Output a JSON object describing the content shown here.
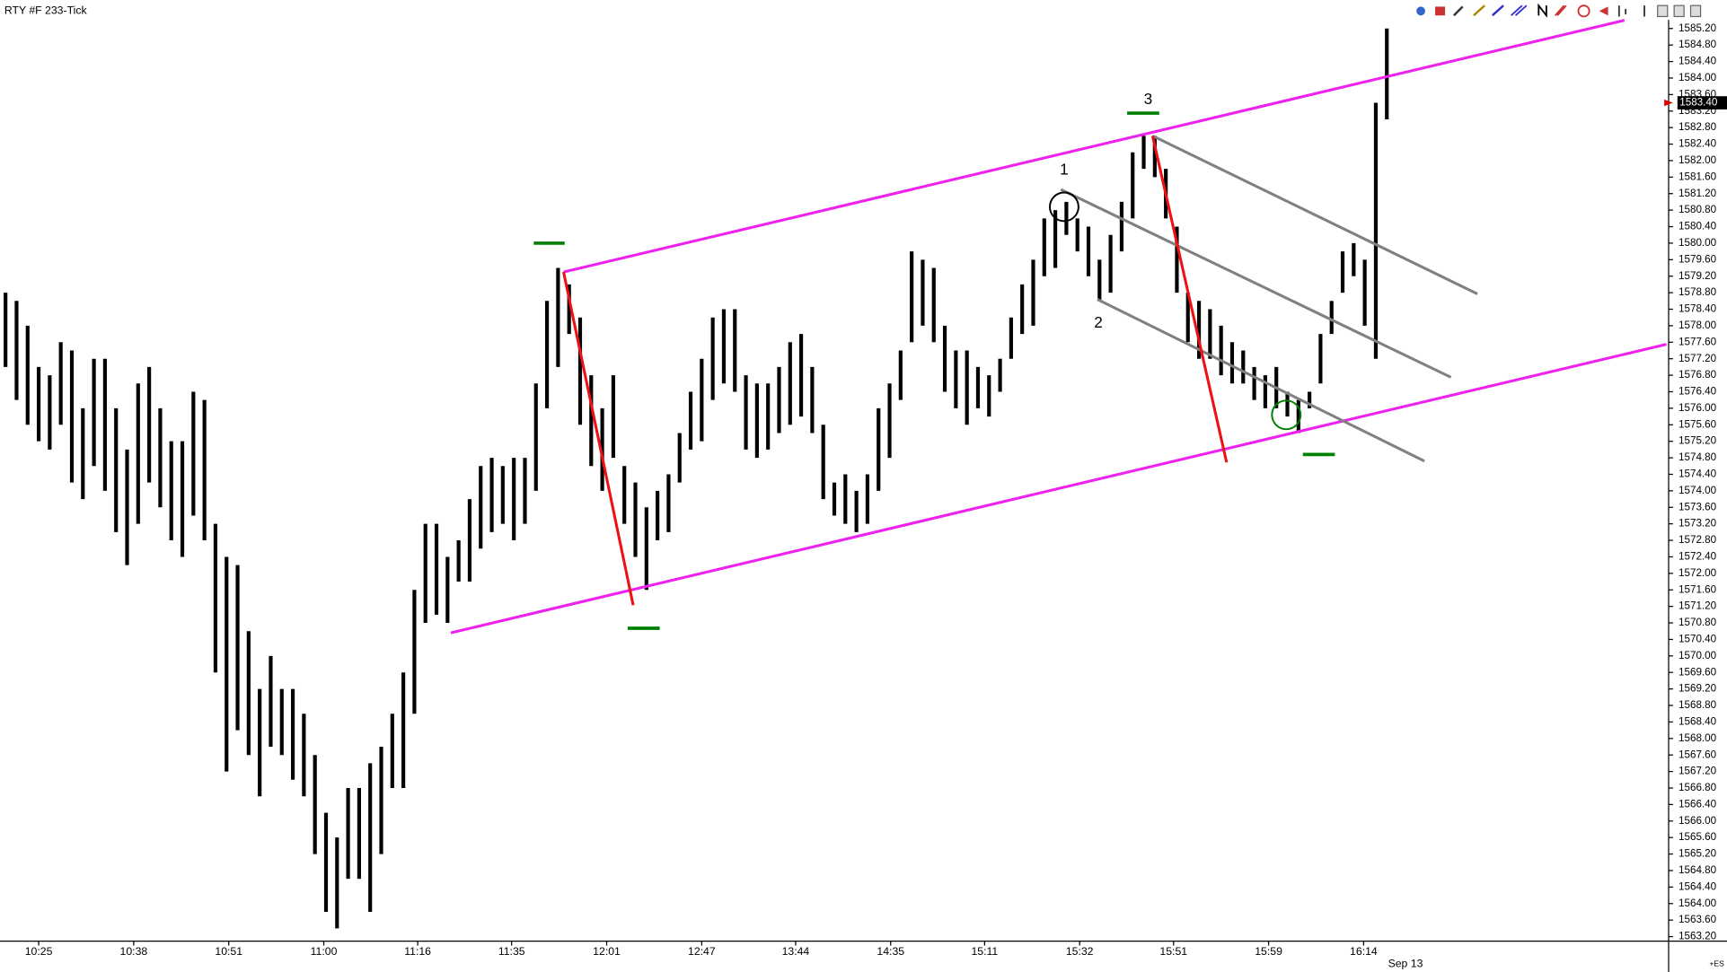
{
  "chart_data": {
    "type": "ohlc",
    "title": "RTY #F 233-Tick",
    "color": "#000000",
    "high": [
      1578.8,
      1578.6,
      1578.0,
      1577.0,
      1576.8,
      1577.6,
      1577.4,
      1576.0,
      1577.2,
      1577.2,
      1576.0,
      1575.0,
      1576.6,
      1577.0,
      1576.0,
      1575.2,
      1575.2,
      1576.4,
      1576.2,
      1573.2,
      1572.4,
      1572.2,
      1570.6,
      1569.2,
      1570.0,
      1569.2,
      1569.2,
      1568.6,
      1567.6,
      1566.2,
      1565.6,
      1566.8,
      1566.8,
      1567.4,
      1567.8,
      1568.6,
      1569.6,
      1571.6,
      1573.2,
      1573.2,
      1572.4,
      1572.8,
      1573.8,
      1574.6,
      1574.8,
      1574.6,
      1574.8,
      1574.8,
      1576.6,
      1578.6,
      1579.4,
      1579.0,
      1578.2,
      1576.8,
      1576.0,
      1576.8,
      1574.6,
      1574.2,
      1573.6,
      1574.0,
      1574.4,
      1575.4,
      1576.4,
      1577.2,
      1578.2,
      1578.4,
      1578.4,
      1576.8,
      1576.6,
      1576.6,
      1577.0,
      1577.6,
      1577.8,
      1577.0,
      1575.6,
      1574.2,
      1574.4,
      1574.0,
      1574.4,
      1576.0,
      1576.6,
      1577.4,
      1579.8,
      1579.6,
      1579.4,
      1578.0,
      1577.4,
      1577.4,
      1577.0,
      1576.8,
      1577.2,
      1578.2,
      1579.0,
      1579.6,
      1580.6,
      1580.8,
      1581.0,
      1580.6,
      1580.4,
      1579.6,
      1580.2,
      1581.0,
      1582.2,
      1582.6,
      1582.6,
      1581.8,
      1580.4,
      1578.8,
      1578.6,
      1578.4,
      1578.0,
      1577.6,
      1577.4,
      1577.0,
      1576.8,
      1577.0,
      1576.4,
      1576.2,
      1576.4,
      1577.8,
      1578.6,
      1579.8,
      1580.0,
      1579.6,
      1583.4,
      1585.2
    ],
    "low": [
      1577.0,
      1576.2,
      1575.6,
      1575.2,
      1575.0,
      1575.6,
      1574.2,
      1573.8,
      1574.6,
      1574.0,
      1573.0,
      1572.2,
      1573.2,
      1574.2,
      1573.6,
      1572.8,
      1572.4,
      1573.4,
      1572.8,
      1569.6,
      1567.2,
      1568.2,
      1567.6,
      1566.6,
      1567.8,
      1567.6,
      1567.0,
      1566.6,
      1565.2,
      1563.8,
      1563.4,
      1564.6,
      1564.6,
      1563.8,
      1565.2,
      1566.8,
      1566.8,
      1568.6,
      1570.8,
      1571.0,
      1570.8,
      1571.8,
      1571.8,
      1572.6,
      1573.0,
      1573.2,
      1572.8,
      1573.2,
      1574.0,
      1576.0,
      1577.0,
      1577.8,
      1575.6,
      1574.6,
      1574.0,
      1574.8,
      1573.2,
      1572.4,
      1571.6,
      1572.8,
      1573.0,
      1574.2,
      1575.0,
      1575.2,
      1576.2,
      1576.6,
      1576.4,
      1575.0,
      1574.8,
      1575.0,
      1575.4,
      1575.6,
      1575.8,
      1575.4,
      1573.8,
      1573.4,
      1573.2,
      1573.0,
      1573.2,
      1574.0,
      1574.8,
      1576.2,
      1577.6,
      1578.0,
      1577.6,
      1576.4,
      1576.0,
      1575.6,
      1576.0,
      1575.8,
      1576.4,
      1577.2,
      1577.8,
      1578.0,
      1579.2,
      1579.4,
      1580.2,
      1579.8,
      1579.2,
      1578.6,
      1578.8,
      1579.8,
      1580.6,
      1581.8,
      1581.6,
      1580.6,
      1578.8,
      1577.6,
      1577.2,
      1577.2,
      1576.8,
      1576.6,
      1576.6,
      1576.2,
      1576.0,
      1576.0,
      1575.8,
      1575.4,
      1576.0,
      1576.6,
      1577.8,
      1578.8,
      1579.2,
      1578.0,
      1577.2,
      1583.0
    ],
    "xlim": [
      -0.5,
      150.5
    ],
    "ylim": [
      1563.09,
      1585.41
    ],
    "xticks": [
      {
        "value": 3,
        "label": "10:25"
      },
      {
        "value": 11.6,
        "label": "10:38"
      },
      {
        "value": 20.2,
        "label": "10:51"
      },
      {
        "value": 28.8,
        "label": "11:00"
      },
      {
        "value": 37.3,
        "label": "11:16"
      },
      {
        "value": 45.8,
        "label": "11:35"
      },
      {
        "value": 54.4,
        "label": "12:01"
      },
      {
        "value": 63,
        "label": "12:47"
      },
      {
        "value": 71.5,
        "label": "13:44"
      },
      {
        "value": 80.1,
        "label": "14:35"
      },
      {
        "value": 88.6,
        "label": "15:11"
      },
      {
        "value": 97.2,
        "label": "15:32"
      },
      {
        "value": 105.7,
        "label": "15:51"
      },
      {
        "value": 114.3,
        "label": "15:59"
      },
      {
        "value": 122.9,
        "label": "16:14"
      }
    ],
    "date_label": "Sep 13",
    "yticks": [
      {
        "value": 1563.2,
        "label": "1563.20"
      },
      {
        "value": 1563.6,
        "label": "1563.60"
      },
      {
        "value": 1564.0,
        "label": "1564.00"
      },
      {
        "value": 1564.4,
        "label": "1564.40"
      },
      {
        "value": 1564.8,
        "label": "1564.80"
      },
      {
        "value": 1565.2,
        "label": "1565.20"
      },
      {
        "value": 1565.6,
        "label": "1565.60"
      },
      {
        "value": 1566.0,
        "label": "1566.00"
      },
      {
        "value": 1566.4,
        "label": "1566.40"
      },
      {
        "value": 1566.8,
        "label": "1566.80"
      },
      {
        "value": 1567.2,
        "label": "1567.20"
      },
      {
        "value": 1567.6,
        "label": "1567.60"
      },
      {
        "value": 1568.0,
        "label": "1568.00"
      },
      {
        "value": 1568.4,
        "label": "1568.40"
      },
      {
        "value": 1568.8,
        "label": "1568.80"
      },
      {
        "value": 1569.2,
        "label": "1569.20"
      },
      {
        "value": 1569.6,
        "label": "1569.60"
      },
      {
        "value": 1570.0,
        "label": "1570.00"
      },
      {
        "value": 1570.4,
        "label": "1570.40"
      },
      {
        "value": 1570.8,
        "label": "1570.80"
      },
      {
        "value": 1571.2,
        "label": "1571.20"
      },
      {
        "value": 1571.6,
        "label": "1571.60"
      },
      {
        "value": 1572.0,
        "label": "1572.00"
      },
      {
        "value": 1572.4,
        "label": "1572.40"
      },
      {
        "value": 1572.8,
        "label": "1572.80"
      },
      {
        "value": 1573.2,
        "label": "1573.20"
      },
      {
        "value": 1573.6,
        "label": "1573.60"
      },
      {
        "value": 1574.0,
        "label": "1574.00"
      },
      {
        "value": 1574.4,
        "label": "1574.40"
      },
      {
        "value": 1574.8,
        "label": "1574.80"
      },
      {
        "value": 1575.2,
        "label": "1575.20"
      },
      {
        "value": 1575.6,
        "label": "1575.60"
      },
      {
        "value": 1576.0,
        "label": "1576.00"
      },
      {
        "value": 1576.4,
        "label": "1576.40"
      },
      {
        "value": 1576.8,
        "label": "1576.80"
      },
      {
        "value": 1577.2,
        "label": "1577.20"
      },
      {
        "value": 1577.6,
        "label": "1577.60"
      },
      {
        "value": 1578.0,
        "label": "1578.00"
      },
      {
        "value": 1578.4,
        "label": "1578.40"
      },
      {
        "value": 1578.8,
        "label": "1578.80"
      },
      {
        "value": 1579.2,
        "label": "1579.20"
      },
      {
        "value": 1579.6,
        "label": "1579.60"
      },
      {
        "value": 1580.0,
        "label": "1580.00"
      },
      {
        "value": 1580.4,
        "label": "1580.40"
      },
      {
        "value": 1580.8,
        "label": "1580.80"
      },
      {
        "value": 1581.2,
        "label": "1581.20"
      },
      {
        "value": 1581.6,
        "label": "1581.60"
      },
      {
        "value": 1582.0,
        "label": "1582.00"
      },
      {
        "value": 1582.4,
        "label": "1582.40"
      },
      {
        "value": 1582.8,
        "label": "1582.80"
      },
      {
        "value": 1583.2,
        "label": "1583.20"
      },
      {
        "value": 1583.6,
        "label": "1583.60"
      },
      {
        "value": 1584.0,
        "label": "1584.00"
      },
      {
        "value": 1584.4,
        "label": "1584.40"
      },
      {
        "value": 1584.8,
        "label": "1584.80"
      },
      {
        "value": 1585.2,
        "label": "1585.20"
      }
    ],
    "last_price": {
      "value": 1583.4,
      "label": "1583.40",
      "color": "#e00000"
    },
    "trendlines": [
      {
        "color": "#ee22ee",
        "x": [
          50.5,
          146.5
        ],
        "y": [
          1579.3,
          1585.4
        ]
      },
      {
        "color": "#ee22ee",
        "x": [
          40.3,
          150.3
        ],
        "y": [
          1570.56,
          1577.55
        ]
      },
      {
        "color": "#808080",
        "x": [
          103.8,
          133.2
        ],
        "y": [
          1582.6,
          1578.77
        ]
      },
      {
        "color": "#808080",
        "x": [
          95.5,
          130.8
        ],
        "y": [
          1581.3,
          1576.75
        ]
      },
      {
        "color": "#808080",
        "x": [
          98.8,
          128.4
        ],
        "y": [
          1578.64,
          1574.72
        ]
      },
      {
        "color": "#ee1111",
        "x": [
          50.5,
          56.8
        ],
        "y": [
          1579.3,
          1571.23
        ]
      },
      {
        "color": "#ee1111",
        "x": [
          103.8,
          110.5
        ],
        "y": [
          1582.6,
          1574.69
        ]
      }
    ],
    "levels": [
      {
        "color": "#008000",
        "x": [
          47.8,
          50.6
        ],
        "value": 1580.0
      },
      {
        "color": "#008000",
        "x": [
          56.3,
          59.2
        ],
        "value": 1570.67
      },
      {
        "color": "#008000",
        "x": [
          101.5,
          104.4
        ],
        "value": 1583.15
      },
      {
        "color": "#008000",
        "x": [
          117.4,
          120.3
        ],
        "value": 1574.88
      }
    ],
    "circles": [
      {
        "color": "#000000",
        "x": 95.8,
        "y": 1580.88
      },
      {
        "color": "#008000",
        "x": 115.9,
        "y": 1575.84
      }
    ],
    "annotations": [
      {
        "text": "1",
        "x": 95.8,
        "y": 1581.76
      },
      {
        "text": "2",
        "x": 98.9,
        "y": 1578.05
      },
      {
        "text": "3",
        "x": 103.4,
        "y": 1583.47
      }
    ],
    "corner_label": "+ES"
  }
}
